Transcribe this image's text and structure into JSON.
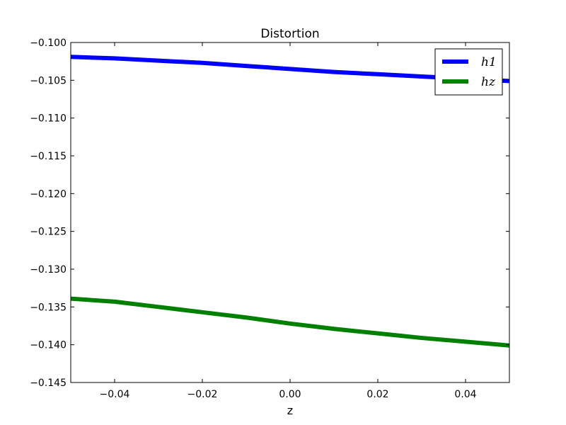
{
  "chart_data": {
    "type": "line",
    "title": "Distortion",
    "xlabel": "z",
    "ylabel": "",
    "xlim": [
      -0.05,
      0.05
    ],
    "ylim": [
      -0.145,
      -0.1
    ],
    "grid": false,
    "legend_position": "top-right",
    "xticks": [
      -0.04,
      -0.02,
      0.0,
      0.02,
      0.04
    ],
    "xtick_labels": [
      "−0.04",
      "−0.02",
      "0.00",
      "0.02",
      "0.04"
    ],
    "yticks": [
      -0.1,
      -0.105,
      -0.11,
      -0.115,
      -0.12,
      -0.125,
      -0.13,
      -0.135,
      -0.14,
      -0.145
    ],
    "ytick_labels": [
      "−0.100",
      "−0.105",
      "−0.110",
      "−0.115",
      "−0.120",
      "−0.125",
      "−0.130",
      "−0.135",
      "−0.140",
      "−0.145"
    ],
    "x": [
      -0.05,
      -0.04,
      -0.03,
      -0.02,
      -0.01,
      0.0,
      0.01,
      0.02,
      0.03,
      0.04,
      0.05
    ],
    "series": [
      {
        "name": "h1",
        "color": "#0000ff",
        "values": [
          -0.1019,
          -0.1021,
          -0.1024,
          -0.1027,
          -0.1031,
          -0.1035,
          -0.1039,
          -0.1042,
          -0.1045,
          -0.1048,
          -0.1051
        ]
      },
      {
        "name": "hz",
        "color": "#008000",
        "values": [
          -0.1339,
          -0.1343,
          -0.135,
          -0.1357,
          -0.1364,
          -0.1372,
          -0.1379,
          -0.1385,
          -0.1391,
          -0.1396,
          -0.1401
        ]
      }
    ]
  }
}
